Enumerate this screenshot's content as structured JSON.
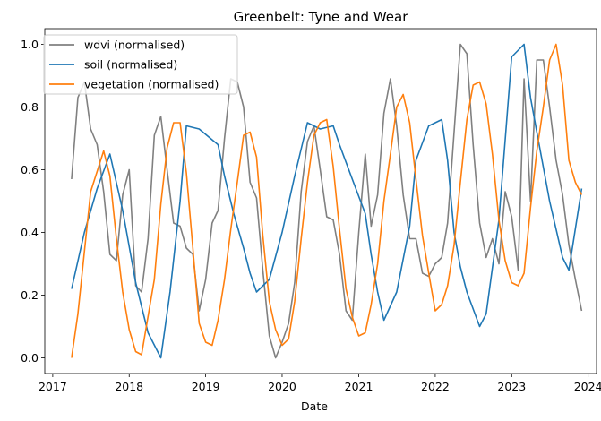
{
  "chart_data": {
    "type": "line",
    "title": "Greenbelt: Tyne and Wear",
    "xlabel": "Date",
    "ylabel": "",
    "x_tick_labels": [
      "2017",
      "2018",
      "2019",
      "2020",
      "2021",
      "2022",
      "2023",
      "2024"
    ],
    "y_tick_labels": [
      "0.0",
      "0.2",
      "0.4",
      "0.6",
      "0.8",
      "1.0"
    ],
    "xlim": [
      "2016-11-24",
      "2024-02-10"
    ],
    "ylim": [
      -0.05,
      1.05
    ],
    "legend_position": "upper-left",
    "grid": false,
    "series": [
      {
        "name": "wdvi (normalised)",
        "color": "#808080",
        "x": [
          "2017-04-01",
          "2017-05-01",
          "2017-06-01",
          "2017-07-01",
          "2017-08-01",
          "2017-09-01",
          "2017-10-01",
          "2017-11-01",
          "2017-12-01",
          "2018-01-01",
          "2018-02-01",
          "2018-03-01",
          "2018-04-01",
          "2018-05-01",
          "2018-06-01",
          "2018-07-01",
          "2018-08-01",
          "2018-09-01",
          "2018-10-01",
          "2018-11-01",
          "2018-12-01",
          "2019-01-01",
          "2019-02-01",
          "2019-03-01",
          "2019-04-01",
          "2019-05-01",
          "2019-06-01",
          "2019-07-01",
          "2019-08-01",
          "2019-09-01",
          "2019-10-01",
          "2019-11-01",
          "2019-12-01",
          "2020-01-01",
          "2020-02-01",
          "2020-03-01",
          "2020-04-01",
          "2020-05-01",
          "2020-06-01",
          "2020-07-01",
          "2020-08-01",
          "2020-09-01",
          "2020-10-01",
          "2020-11-01",
          "2020-12-01",
          "2021-01-01",
          "2021-02-01",
          "2021-03-01",
          "2021-04-01",
          "2021-05-01",
          "2021-06-01",
          "2021-07-01",
          "2021-08-01",
          "2021-09-01",
          "2021-10-01",
          "2021-11-01",
          "2021-12-01",
          "2022-01-01",
          "2022-02-01",
          "2022-03-01",
          "2022-04-01",
          "2022-05-01",
          "2022-06-01",
          "2022-07-01",
          "2022-08-01",
          "2022-09-01",
          "2022-10-01",
          "2022-11-01",
          "2022-12-01",
          "2023-01-01",
          "2023-02-01",
          "2023-03-01",
          "2023-04-01",
          "2023-05-01",
          "2023-06-01",
          "2023-07-01",
          "2023-08-01",
          "2023-09-01",
          "2023-10-01",
          "2023-11-01",
          "2023-12-01"
        ],
        "values": [
          0.57,
          0.83,
          0.88,
          0.73,
          0.68,
          0.53,
          0.33,
          0.31,
          0.52,
          0.6,
          0.23,
          0.21,
          0.38,
          0.71,
          0.77,
          0.6,
          0.43,
          0.42,
          0.35,
          0.33,
          0.15,
          0.25,
          0.43,
          0.47,
          0.7,
          0.89,
          0.88,
          0.8,
          0.56,
          0.51,
          0.28,
          0.07,
          0.0,
          0.05,
          0.11,
          0.24,
          0.53,
          0.69,
          0.74,
          0.6,
          0.45,
          0.44,
          0.33,
          0.15,
          0.12,
          0.4,
          0.65,
          0.42,
          0.52,
          0.78,
          0.89,
          0.74,
          0.52,
          0.38,
          0.38,
          0.27,
          0.26,
          0.3,
          0.32,
          0.43,
          0.72,
          1.0,
          0.97,
          0.68,
          0.43,
          0.32,
          0.38,
          0.3,
          0.53,
          0.45,
          0.28,
          0.89,
          0.5,
          0.95,
          0.95,
          0.8,
          0.63,
          0.52,
          0.36,
          0.25,
          0.15
        ]
      },
      {
        "name": "soil (normalised)",
        "color": "#1f77b4",
        "x": [
          "2017-04-01",
          "2017-06-01",
          "2017-08-01",
          "2017-10-01",
          "2017-12-01",
          "2018-02-01",
          "2018-04-01",
          "2018-06-01",
          "2018-07-15",
          "2018-09-01",
          "2018-10-01",
          "2018-12-01",
          "2019-03-01",
          "2019-04-01",
          "2019-05-15",
          "2019-07-01",
          "2019-08-01",
          "2019-09-01",
          "2019-11-01",
          "2020-01-01",
          "2020-03-01",
          "2020-05-01",
          "2020-07-01",
          "2020-09-01",
          "2020-10-01",
          "2020-12-01",
          "2021-02-01",
          "2021-03-01",
          "2021-04-01",
          "2021-05-01",
          "2021-07-01",
          "2021-09-01",
          "2021-10-01",
          "2021-12-01",
          "2022-02-01",
          "2022-03-01",
          "2022-04-01",
          "2022-05-01",
          "2022-06-01",
          "2022-08-01",
          "2022-09-01",
          "2022-11-01",
          "2023-01-01",
          "2023-03-01",
          "2023-04-01",
          "2023-05-01",
          "2023-07-01",
          "2023-09-01",
          "2023-10-01",
          "2023-12-01"
        ],
        "values": [
          0.22,
          0.4,
          0.54,
          0.65,
          0.47,
          0.24,
          0.08,
          0.0,
          0.21,
          0.5,
          0.74,
          0.73,
          0.68,
          0.58,
          0.46,
          0.35,
          0.27,
          0.21,
          0.25,
          0.4,
          0.58,
          0.75,
          0.73,
          0.74,
          0.68,
          0.57,
          0.46,
          0.33,
          0.21,
          0.12,
          0.21,
          0.42,
          0.63,
          0.74,
          0.76,
          0.63,
          0.4,
          0.29,
          0.21,
          0.1,
          0.14,
          0.44,
          0.96,
          1.0,
          0.83,
          0.72,
          0.5,
          0.32,
          0.28,
          0.54
        ]
      },
      {
        "name": "vegetation (normalised)",
        "color": "#ff7f0e",
        "x": [
          "2017-04-01",
          "2017-05-01",
          "2017-07-01",
          "2017-09-01",
          "2017-10-01",
          "2017-11-01",
          "2017-12-01",
          "2018-01-01",
          "2018-02-01",
          "2018-03-01",
          "2018-05-01",
          "2018-06-01",
          "2018-07-01",
          "2018-08-01",
          "2018-09-01",
          "2018-10-01",
          "2018-11-01",
          "2018-12-01",
          "2019-01-01",
          "2019-02-01",
          "2019-03-01",
          "2019-04-01",
          "2019-05-01",
          "2019-06-01",
          "2019-07-01",
          "2019-08-01",
          "2019-09-01",
          "2019-10-01",
          "2019-11-01",
          "2019-12-01",
          "2020-01-01",
          "2020-02-01",
          "2020-03-01",
          "2020-04-01",
          "2020-05-01",
          "2020-06-01",
          "2020-07-01",
          "2020-08-01",
          "2020-09-01",
          "2020-10-01",
          "2020-11-01",
          "2020-12-01",
          "2021-01-01",
          "2021-02-01",
          "2021-03-01",
          "2021-04-01",
          "2021-05-01",
          "2021-06-01",
          "2021-07-01",
          "2021-08-01",
          "2021-09-01",
          "2021-10-01",
          "2021-11-01",
          "2021-12-01",
          "2022-01-01",
          "2022-02-01",
          "2022-03-01",
          "2022-04-01",
          "2022-05-01",
          "2022-06-01",
          "2022-07-01",
          "2022-08-01",
          "2022-09-01",
          "2022-10-01",
          "2022-11-01",
          "2022-12-01",
          "2023-01-01",
          "2023-02-01",
          "2023-03-01",
          "2023-04-01",
          "2023-05-01",
          "2023-06-01",
          "2023-07-01",
          "2023-08-01",
          "2023-09-01",
          "2023-10-01",
          "2023-11-01",
          "2023-12-01"
        ],
        "values": [
          0.0,
          0.14,
          0.53,
          0.66,
          0.58,
          0.38,
          0.21,
          0.09,
          0.02,
          0.01,
          0.25,
          0.49,
          0.67,
          0.75,
          0.75,
          0.59,
          0.35,
          0.11,
          0.05,
          0.04,
          0.12,
          0.25,
          0.41,
          0.56,
          0.71,
          0.72,
          0.64,
          0.39,
          0.18,
          0.09,
          0.04,
          0.06,
          0.18,
          0.38,
          0.56,
          0.71,
          0.75,
          0.76,
          0.61,
          0.41,
          0.22,
          0.13,
          0.07,
          0.08,
          0.17,
          0.3,
          0.5,
          0.65,
          0.8,
          0.84,
          0.75,
          0.57,
          0.39,
          0.27,
          0.15,
          0.17,
          0.23,
          0.36,
          0.56,
          0.76,
          0.87,
          0.88,
          0.81,
          0.65,
          0.44,
          0.31,
          0.24,
          0.23,
          0.27,
          0.48,
          0.66,
          0.8,
          0.95,
          1.0,
          0.87,
          0.63,
          0.56,
          0.52
        ]
      }
    ]
  }
}
